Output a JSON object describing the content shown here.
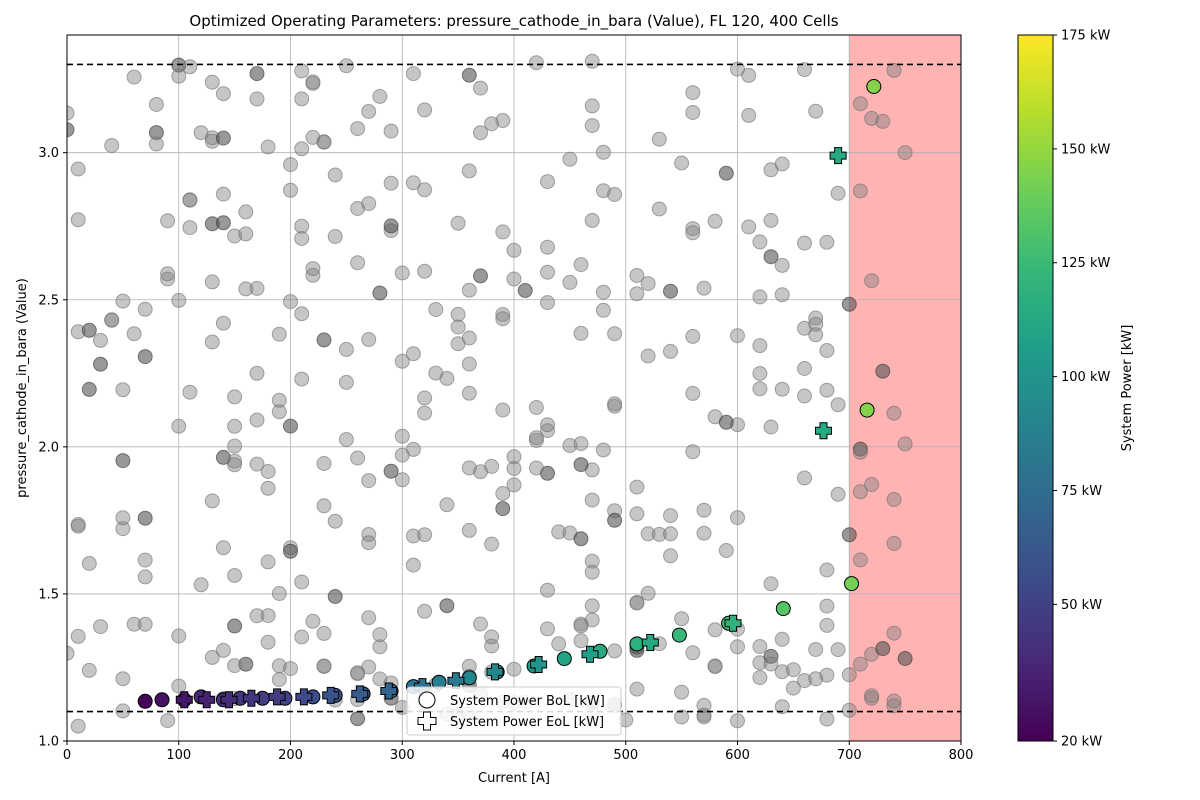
{
  "chart_data": {
    "type": "scatter",
    "title": "Optimized Operating Parameters: pressure_cathode_in_bara (Value), FL 120, 400 Cells",
    "xlabel": "Current [A]",
    "ylabel": "pressure_cathode_in_bara (Value)",
    "xlim": [
      0,
      800
    ],
    "ylim": [
      1.0,
      3.4
    ],
    "xticks": [
      {
        "value": 0,
        "label": "0"
      },
      {
        "value": 100,
        "label": "100"
      },
      {
        "value": 200,
        "label": "200"
      },
      {
        "value": 300,
        "label": "300"
      },
      {
        "value": 400,
        "label": "400"
      },
      {
        "value": 500,
        "label": "500"
      },
      {
        "value": 600,
        "label": "600"
      },
      {
        "value": 700,
        "label": "700"
      },
      {
        "value": 800,
        "label": "800"
      }
    ],
    "yticks": [
      {
        "value": 1.0,
        "label": "1.0"
      },
      {
        "value": 1.5,
        "label": "1.5"
      },
      {
        "value": 2.0,
        "label": "2.0"
      },
      {
        "value": 2.5,
        "label": "2.5"
      },
      {
        "value": 3.0,
        "label": "3.0"
      }
    ],
    "grid": true,
    "hlines": [
      {
        "y": 3.3,
        "style": "dashed",
        "color": "#000000"
      },
      {
        "y": 1.1,
        "style": "dashed",
        "color": "#000000"
      }
    ],
    "shaded_region": {
      "x_from": 700,
      "x_to": 800,
      "color": "#ffb3b3"
    },
    "background_points": {
      "color": "#808080",
      "approx_count": 440
    },
    "series": [
      {
        "name": "System Power BoL [kW]",
        "marker": "circle",
        "points": [
          {
            "x": 70,
            "y": 1.135,
            "power": 22
          },
          {
            "x": 85,
            "y": 1.14,
            "power": 27
          },
          {
            "x": 105,
            "y": 1.14,
            "power": 32
          },
          {
            "x": 120,
            "y": 1.15,
            "power": 37
          },
          {
            "x": 140,
            "y": 1.14,
            "power": 42
          },
          {
            "x": 155,
            "y": 1.145,
            "power": 45
          },
          {
            "x": 175,
            "y": 1.145,
            "power": 48
          },
          {
            "x": 195,
            "y": 1.145,
            "power": 52
          },
          {
            "x": 220,
            "y": 1.15,
            "power": 58
          },
          {
            "x": 240,
            "y": 1.155,
            "power": 61
          },
          {
            "x": 265,
            "y": 1.16,
            "power": 66
          },
          {
            "x": 290,
            "y": 1.17,
            "power": 72
          },
          {
            "x": 310,
            "y": 1.185,
            "power": 80
          },
          {
            "x": 333,
            "y": 1.2,
            "power": 86
          },
          {
            "x": 360,
            "y": 1.215,
            "power": 92
          },
          {
            "x": 385,
            "y": 1.235,
            "power": 98
          },
          {
            "x": 418,
            "y": 1.255,
            "power": 105
          },
          {
            "x": 445,
            "y": 1.28,
            "power": 110
          },
          {
            "x": 477,
            "y": 1.305,
            "power": 113
          },
          {
            "x": 510,
            "y": 1.33,
            "power": 118
          },
          {
            "x": 548,
            "y": 1.36,
            "power": 124
          },
          {
            "x": 592,
            "y": 1.4,
            "power": 128
          },
          {
            "x": 641,
            "y": 1.45,
            "power": 133
          },
          {
            "x": 702,
            "y": 1.535,
            "power": 142
          },
          {
            "x": 716,
            "y": 2.125,
            "power": 146
          },
          {
            "x": 722,
            "y": 3.225,
            "power": 146
          }
        ]
      },
      {
        "name": "System Power EoL [kW]",
        "marker": "plus",
        "points": [
          {
            "x": 105,
            "y": 1.14,
            "power": 30
          },
          {
            "x": 125,
            "y": 1.14,
            "power": 35
          },
          {
            "x": 145,
            "y": 1.14,
            "power": 39
          },
          {
            "x": 165,
            "y": 1.145,
            "power": 44
          },
          {
            "x": 188,
            "y": 1.15,
            "power": 48
          },
          {
            "x": 212,
            "y": 1.15,
            "power": 54
          },
          {
            "x": 236,
            "y": 1.155,
            "power": 60
          },
          {
            "x": 262,
            "y": 1.16,
            "power": 65
          },
          {
            "x": 288,
            "y": 1.17,
            "power": 70
          },
          {
            "x": 318,
            "y": 1.185,
            "power": 77
          },
          {
            "x": 348,
            "y": 1.205,
            "power": 83
          },
          {
            "x": 383,
            "y": 1.235,
            "power": 92
          },
          {
            "x": 422,
            "y": 1.26,
            "power": 100
          },
          {
            "x": 468,
            "y": 1.295,
            "power": 106
          },
          {
            "x": 522,
            "y": 1.335,
            "power": 113
          },
          {
            "x": 596,
            "y": 1.4,
            "power": 120
          },
          {
            "x": 677,
            "y": 2.055,
            "power": 114
          },
          {
            "x": 690,
            "y": 2.99,
            "power": 113
          }
        ]
      }
    ],
    "legend": {
      "placement": "bottom-center"
    },
    "colorbar": {
      "label": "System Power [kW]",
      "colormap": "viridis",
      "range": [
        20,
        175
      ],
      "ticks": [
        {
          "value": 20,
          "label": "20 kW"
        },
        {
          "value": 50,
          "label": "50 kW"
        },
        {
          "value": 75,
          "label": "75 kW"
        },
        {
          "value": 100,
          "label": "100 kW"
        },
        {
          "value": 125,
          "label": "125 kW"
        },
        {
          "value": 150,
          "label": "150 kW"
        },
        {
          "value": 175,
          "label": "175 kW"
        }
      ]
    },
    "colors": {
      "viridis_stops": [
        "#440154",
        "#482878",
        "#3e4a89",
        "#31688e",
        "#26828e",
        "#1f9e89",
        "#35b779",
        "#6ece58",
        "#b5de2b",
        "#fde725"
      ]
    }
  }
}
